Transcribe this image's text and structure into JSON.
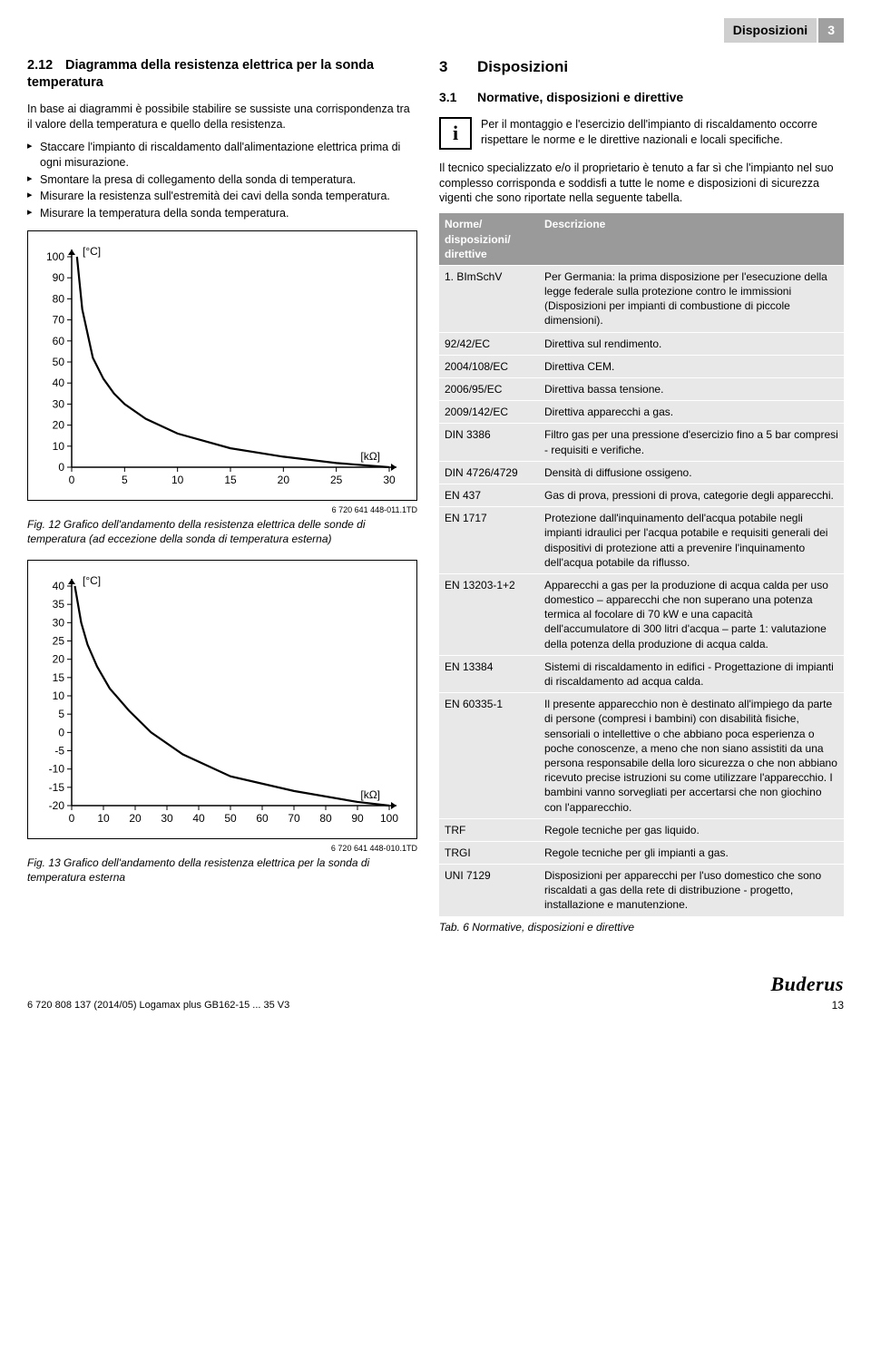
{
  "header": {
    "title": "Disposizioni",
    "page_badge": "3"
  },
  "left": {
    "heading_num": "2.12",
    "heading": "Diagramma della resistenza elettrica per la sonda temperatura",
    "intro": "In base ai diagrammi è possibile stabilire se sussiste una corrispondenza tra il valore della temperatura e quello della resistenza.",
    "bullets": [
      "Staccare l'impianto di riscaldamento dall'alimentazione elettrica prima di ogni misurazione.",
      "Smontare la presa di collegamento della sonda di temperatura.",
      "Misurare la resistenza sull'estremità dei cavi della sonda temperatura.",
      "Misurare la temperatura della sonda temperatura."
    ],
    "chart1": {
      "y_unit": "[°C]",
      "x_unit": "[kΩ]",
      "y_ticks": [
        0,
        10,
        20,
        30,
        40,
        50,
        60,
        70,
        80,
        90,
        100
      ],
      "x_ticks": [
        0,
        5,
        10,
        15,
        20,
        25,
        30
      ],
      "ref": "6 720 641 448-011.1TD",
      "curve": [
        [
          0.5,
          100
        ],
        [
          1,
          75
        ],
        [
          2,
          52
        ],
        [
          3,
          42
        ],
        [
          4,
          35
        ],
        [
          5,
          30
        ],
        [
          7,
          23
        ],
        [
          10,
          16
        ],
        [
          15,
          9
        ],
        [
          20,
          5
        ],
        [
          25,
          2
        ],
        [
          30,
          0
        ]
      ],
      "caption_prefix": "Fig. 12",
      "caption": "Grafico dell'andamento della resistenza elettrica delle sonde di temperatura (ad eccezione della sonda di temperatura esterna)"
    },
    "chart2": {
      "y_unit": "[°C]",
      "x_unit": "[kΩ]",
      "y_ticks": [
        -20,
        -15,
        -10,
        -5,
        0,
        5,
        10,
        15,
        20,
        25,
        30,
        35,
        40
      ],
      "x_ticks": [
        0,
        10,
        20,
        30,
        40,
        50,
        60,
        70,
        80,
        90,
        100
      ],
      "ref": "6 720 641 448-010.1TD",
      "curve": [
        [
          1,
          40
        ],
        [
          3,
          30
        ],
        [
          5,
          24
        ],
        [
          8,
          18
        ],
        [
          12,
          12
        ],
        [
          18,
          6
        ],
        [
          25,
          0
        ],
        [
          35,
          -6
        ],
        [
          50,
          -12
        ],
        [
          70,
          -16
        ],
        [
          90,
          -19
        ],
        [
          100,
          -20
        ]
      ],
      "caption_prefix": "Fig. 13",
      "caption": "Grafico dell'andamento della resistenza elettrica per la sonda di temperatura esterna"
    }
  },
  "right": {
    "h1_num": "3",
    "h1": "Disposizioni",
    "h3_num": "3.1",
    "h3": "Normative, disposizioni e direttive",
    "info": "Per il montaggio e l'esercizio dell'impianto di riscaldamento occorre rispettare le norme e le direttive nazionali e locali specifiche.",
    "para2": "Il tecnico specializzato e/o il proprietario è tenuto a far sì che l'impianto nel suo complesso corrisponda e soddisfi a tutte le nome e disposizioni di sicurezza vigenti che sono riportate nella seguente tabella.",
    "table": {
      "col1": "Norme/\ndisposizioni/\ndirettive",
      "col2": "Descrizione",
      "rows": [
        [
          "1. BImSchV",
          "Per Germania: la prima disposizione per l'esecuzione della legge federale sulla protezione contro le immissioni (Disposizioni per impianti di combustione di piccole dimensioni)."
        ],
        [
          "92/42/EC",
          "Direttiva sul rendimento."
        ],
        [
          "2004/108/EC",
          "Direttiva CEM."
        ],
        [
          "2006/95/EC",
          "Direttiva bassa tensione."
        ],
        [
          "2009/142/EC",
          "Direttiva apparecchi a gas."
        ],
        [
          "DIN 3386",
          "Filtro gas per una pressione d'esercizio fino a 5 bar compresi - requisiti e verifiche."
        ],
        [
          "DIN 4726/4729",
          "Densità di diffusione ossigeno."
        ],
        [
          "EN 437",
          "Gas di prova, pressioni di prova, categorie degli apparecchi."
        ],
        [
          "EN 1717",
          "Protezione dall'inquinamento dell'acqua potabile negli impianti idraulici per l'acqua potabile e requisiti generali dei dispositivi di protezione atti a prevenire l'inquinamento dell'acqua potabile da riflusso."
        ],
        [
          "EN 13203-1+2",
          "Apparecchi a gas per la produzione di acqua calda per uso domestico – apparecchi che non superano una potenza termica al focolare di 70 kW e una capacità dell'accumulatore di 300 litri d'acqua – parte 1: valutazione della potenza della produzione di acqua calda."
        ],
        [
          "EN 13384",
          "Sistemi di riscaldamento in edifici - Progettazione di impianti di riscaldamento ad acqua calda."
        ],
        [
          "EN 60335-1",
          "Il presente apparecchio non è destinato all'impiego da parte di persone (compresi i bambini) con disabilità fisiche, sensoriali o intellettive o che abbiano poca esperienza o poche conoscenze, a meno che non siano assistiti da una persona responsabile della loro sicurezza o che non abbiano ricevuto precise istruzioni su come utilizzare l'apparecchio. I bambini vanno sorvegliati per accertarsi che non giochino con l'apparecchio."
        ],
        [
          "TRF",
          "Regole tecniche per gas liquido."
        ],
        [
          "TRGI",
          "Regole tecniche per gli impianti a gas."
        ],
        [
          "UNI 7129",
          "Disposizioni per apparecchi per l'uso domestico che sono riscaldati a gas della rete di distribuzione - progetto, installazione e manutenzione."
        ]
      ],
      "caption_prefix": "Tab. 6",
      "caption": "Normative, disposizioni e direttive"
    }
  },
  "footer": {
    "left": "6 720 808 137 (2014/05) Logamax plus GB162-15 ... 35 V3",
    "logo": "Buderus",
    "page": "13"
  }
}
